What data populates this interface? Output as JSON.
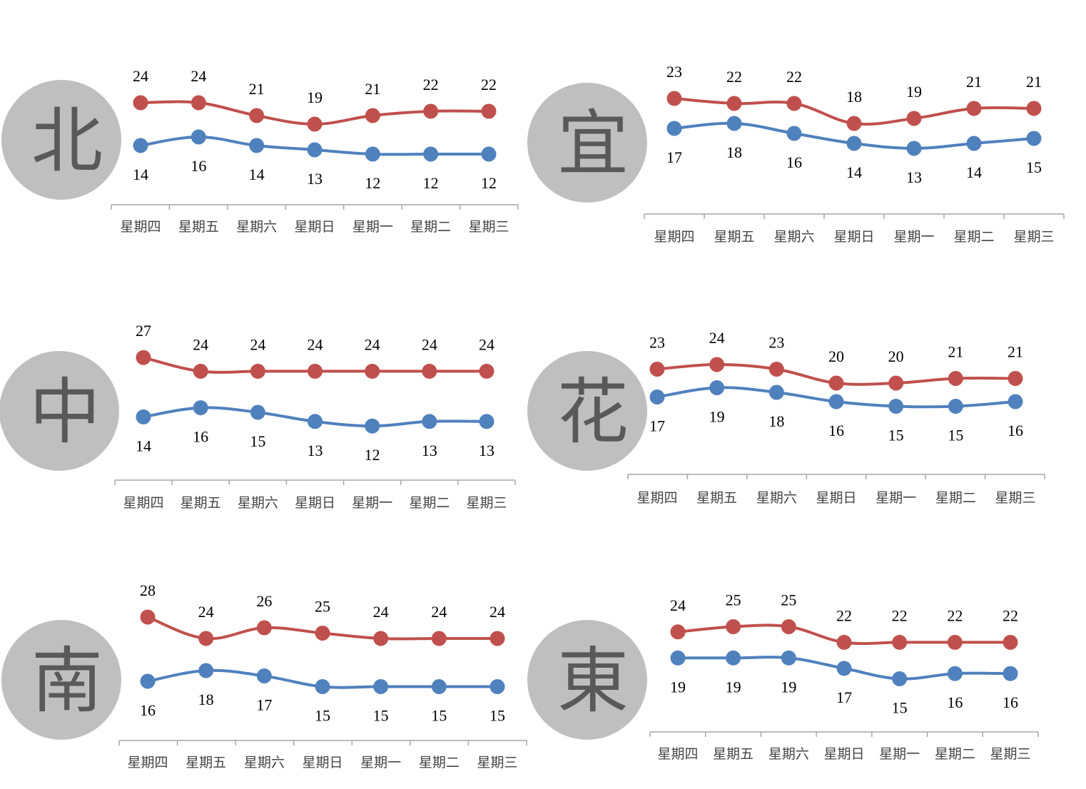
{
  "colors": {
    "high": "#C0504D",
    "low": "#4F81BD",
    "circle": "#BFBFBF",
    "axis": "#A6A6A6"
  },
  "chart_data": [
    {
      "type": "line",
      "region": "北",
      "categories": [
        "星期四",
        "星期五",
        "星期六",
        "星期日",
        "星期一",
        "星期二",
        "星期三"
      ],
      "series": [
        {
          "values": [
            24,
            24,
            21,
            19,
            21,
            22,
            22
          ]
        },
        {
          "values": [
            14,
            16,
            14,
            13,
            12,
            12,
            12
          ]
        }
      ]
    },
    {
      "type": "line",
      "region": "宜",
      "categories": [
        "星期四",
        "星期五",
        "星期六",
        "星期日",
        "星期一",
        "星期二",
        "星期三"
      ],
      "series": [
        {
          "values": [
            23,
            22,
            22,
            18,
            19,
            21,
            21
          ]
        },
        {
          "values": [
            17,
            18,
            16,
            14,
            13,
            14,
            15
          ]
        }
      ]
    },
    {
      "type": "line",
      "region": "中",
      "categories": [
        "星期四",
        "星期五",
        "星期六",
        "星期日",
        "星期一",
        "星期二",
        "星期三"
      ],
      "series": [
        {
          "values": [
            27,
            24,
            24,
            24,
            24,
            24,
            24
          ]
        },
        {
          "values": [
            14,
            16,
            15,
            13,
            12,
            13,
            13
          ]
        }
      ]
    },
    {
      "type": "line",
      "region": "花",
      "categories": [
        "星期四",
        "星期五",
        "星期六",
        "星期日",
        "星期一",
        "星期二",
        "星期三"
      ],
      "series": [
        {
          "values": [
            23,
            24,
            23,
            20,
            20,
            21,
            21
          ]
        },
        {
          "values": [
            17,
            19,
            18,
            16,
            15,
            15,
            16
          ]
        }
      ]
    },
    {
      "type": "line",
      "region": "南",
      "categories": [
        "星期四",
        "星期五",
        "星期六",
        "星期日",
        "星期一",
        "星期二",
        "星期三"
      ],
      "series": [
        {
          "values": [
            28,
            24,
            26,
            25,
            24,
            24,
            24
          ]
        },
        {
          "values": [
            16,
            18,
            17,
            15,
            15,
            15,
            15
          ]
        }
      ]
    },
    {
      "type": "line",
      "region": "東",
      "categories": [
        "星期四",
        "星期五",
        "星期六",
        "星期日",
        "星期一",
        "星期二",
        "星期三"
      ],
      "series": [
        {
          "values": [
            24,
            25,
            25,
            22,
            22,
            22,
            22
          ]
        },
        {
          "values": [
            19,
            19,
            19,
            17,
            15,
            16,
            16
          ]
        }
      ]
    }
  ]
}
